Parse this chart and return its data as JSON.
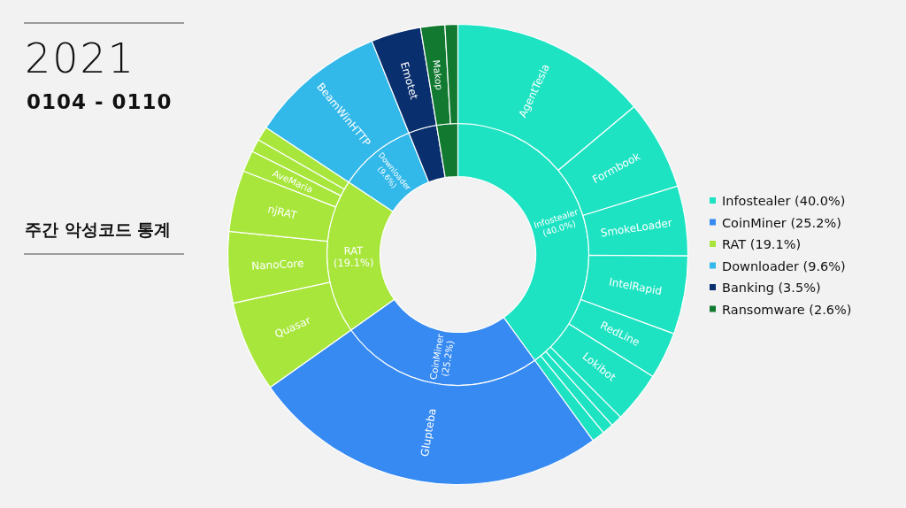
{
  "chart_data": [
    {
      "type": "donut",
      "title": "2021",
      "subtitle": "0104 - 0110",
      "annotations": [
        "주간 악성코드 통계"
      ],
      "legend": "right",
      "categories": [
        "Infostealer (40.0%)",
        "CoinMiner (25.2%)",
        "RAT (19.1%)",
        "Downloader (9.6%)",
        "Banking (3.5%)",
        "Ransomware (2.6%)"
      ],
      "values": [
        40.0,
        25.2,
        19.1,
        9.6,
        3.5,
        2.6
      ],
      "colors": [
        "#1de3c2",
        "#378af2",
        "#a8e63c",
        "#33b8ea",
        "#0a2f6e",
        "#127a30"
      ]
    },
    {
      "type": "donut",
      "legend": false,
      "categories": [
        "AgentTesla",
        "Formbook",
        "SmokeLoader",
        "IntelRapid",
        "RedLine",
        "Lokibot",
        null,
        null,
        null,
        "Glupteba",
        "Quasar",
        "NanoCore",
        "njRAT",
        "AveMaria",
        null,
        null,
        "BeamWinHTTP",
        "Emotet",
        "Makop",
        null
      ],
      "values": [
        13.9,
        6.3,
        4.9,
        5.5,
        3.3,
        3.6,
        0.8,
        0.8,
        0.9,
        25.2,
        6.4,
        5.0,
        4.3,
        1.5,
        0.9,
        1.0,
        9.6,
        3.5,
        1.7,
        0.9
      ],
      "colors": [
        "#1de3c2",
        "#1de3c2",
        "#1de3c2",
        "#1de3c2",
        "#1de3c2",
        "#1de3c2",
        "#1de3c2",
        "#1de3c2",
        "#1de3c2",
        "#378af2",
        "#a8e63c",
        "#a8e63c",
        "#a8e63c",
        "#a8e63c",
        "#a8e63c",
        "#a8e63c",
        "#33b8ea",
        "#0a2f6e",
        "#127a30",
        "#127a30"
      ]
    }
  ]
}
